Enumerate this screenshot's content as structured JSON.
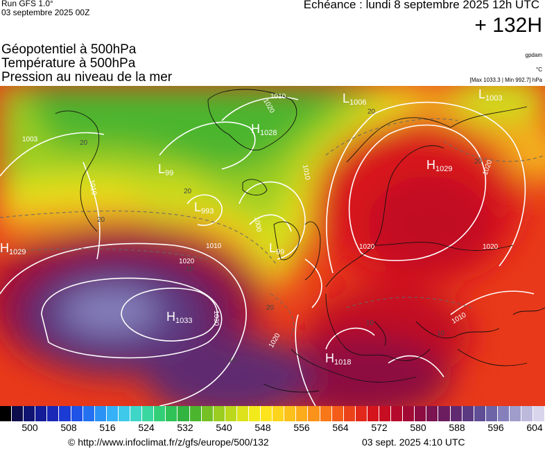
{
  "header": {
    "run": "Run GFS 1.0°",
    "run_date": "03 septembre 2025 00Z",
    "echeance": "Echéance : lundi 8 septembre 2025 12h UTC",
    "horizon": "+ 132H"
  },
  "layers": [
    "Géopotentiel à 500hPa",
    "Température à 500hPa",
    "Pression au niveau de la mer"
  ],
  "units": {
    "geopotential": "gpdam",
    "temperature": "°C",
    "pressure_range": "[Max 1033.3 | Min 992.7] hPa"
  },
  "map": {
    "pressure_centers": [
      {
        "type": "H",
        "value": "1033"
      },
      {
        "type": "H",
        "value": "1029"
      },
      {
        "type": "H",
        "value": "1029"
      },
      {
        "type": "H",
        "value": "1028"
      },
      {
        "type": "H",
        "value": "1018"
      },
      {
        "type": "L",
        "value": "993"
      },
      {
        "type": "L",
        "value": "99"
      },
      {
        "type": "L",
        "value": "99"
      },
      {
        "type": "L",
        "value": "1006"
      },
      {
        "type": "L",
        "value": "1003"
      }
    ],
    "isobar_labels": [
      "1003",
      "1010",
      "1020",
      "1020",
      "1030",
      "1010",
      "1020",
      "1000",
      "1010",
      "1020",
      "1020",
      "1010",
      "1020",
      "1010"
    ],
    "isotherm_labels": [
      "20",
      "20",
      "20",
      "20",
      "20",
      "20",
      "10",
      "10",
      "10",
      "10"
    ]
  },
  "legend": {
    "colors": [
      "#000000",
      "#0c0d4a",
      "#101472",
      "#141c97",
      "#1a28b6",
      "#1c3ad4",
      "#1f52e6",
      "#2371f0",
      "#2b92f5",
      "#36b1f7",
      "#3ec9ea",
      "#3fd6c8",
      "#3ad7a0",
      "#33cf78",
      "#2ec257",
      "#33b33f",
      "#4cb52e",
      "#74c025",
      "#9acd20",
      "#bcd81c",
      "#dde31a",
      "#f3ea1b",
      "#fde41c",
      "#fed41c",
      "#fdc11b",
      "#fcab1a",
      "#fb921a",
      "#f87719",
      "#f35c19",
      "#ec421a",
      "#e2281b",
      "#d5151c",
      "#c60d22",
      "#b40a2b",
      "#a10a35",
      "#8d0c41",
      "#7b1450",
      "#6c1d5f",
      "#612a70",
      "#5c3a82",
      "#5f4d96",
      "#6d64a8",
      "#8580bb",
      "#a09dcc",
      "#bdb9dd",
      "#d8d5ec"
    ],
    "ticks": [
      "500",
      "508",
      "516",
      "524",
      "532",
      "540",
      "548",
      "556",
      "564",
      "572",
      "580",
      "588",
      "596",
      "604"
    ]
  },
  "footer": {
    "copyright": "© http://www.infoclimat.fr/z/gfs/europe/500/132",
    "generated": "03 sept. 2025  4:10 UTC"
  }
}
